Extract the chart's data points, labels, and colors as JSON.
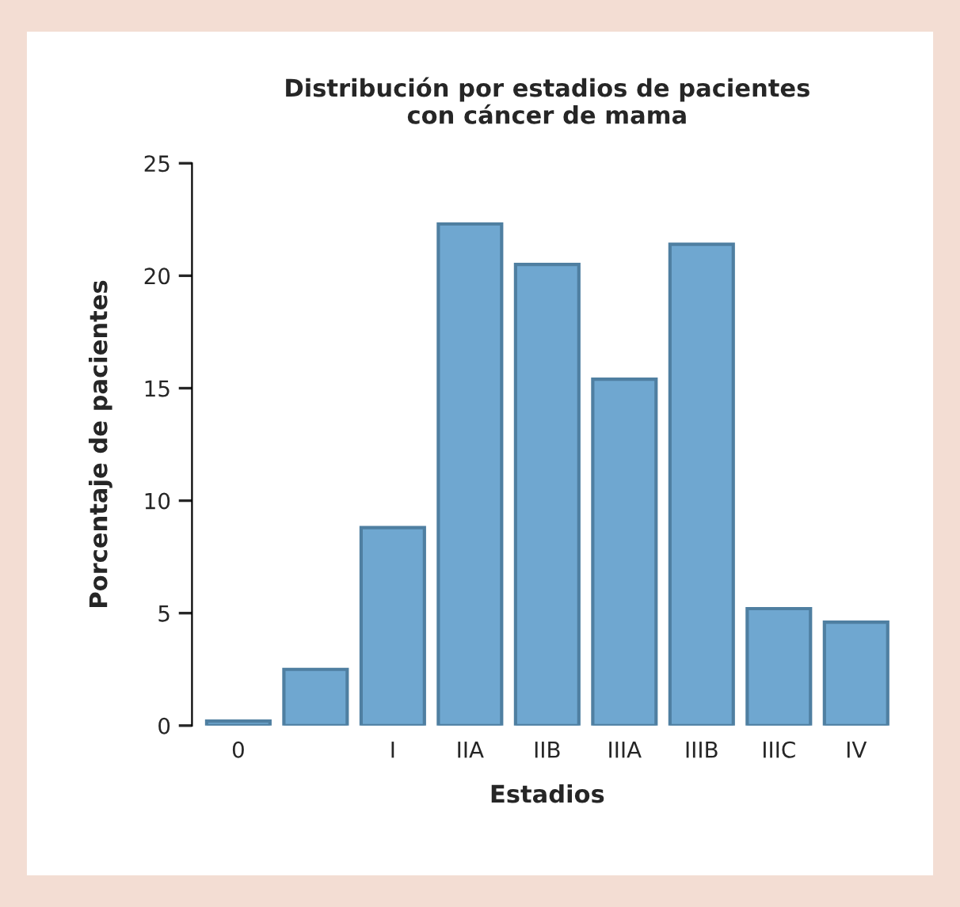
{
  "chart_data": {
    "type": "bar",
    "title": "Distribución por estadios de pacientes\ncon cáncer de mama",
    "xlabel": "Estadios",
    "ylabel": "Porcentaje de pacientes",
    "categories": [
      "0",
      null,
      "I",
      "IIA",
      "IIB",
      "IIIA",
      "IIIB",
      "IIIC",
      "IV"
    ],
    "values": [
      0.2,
      2.5,
      8.8,
      22.3,
      20.5,
      15.4,
      21.4,
      5.2,
      4.6
    ],
    "color": "#6fa7d0",
    "ylim": [
      0,
      25
    ],
    "yticks": [
      0,
      5,
      10,
      15,
      20,
      25
    ]
  }
}
